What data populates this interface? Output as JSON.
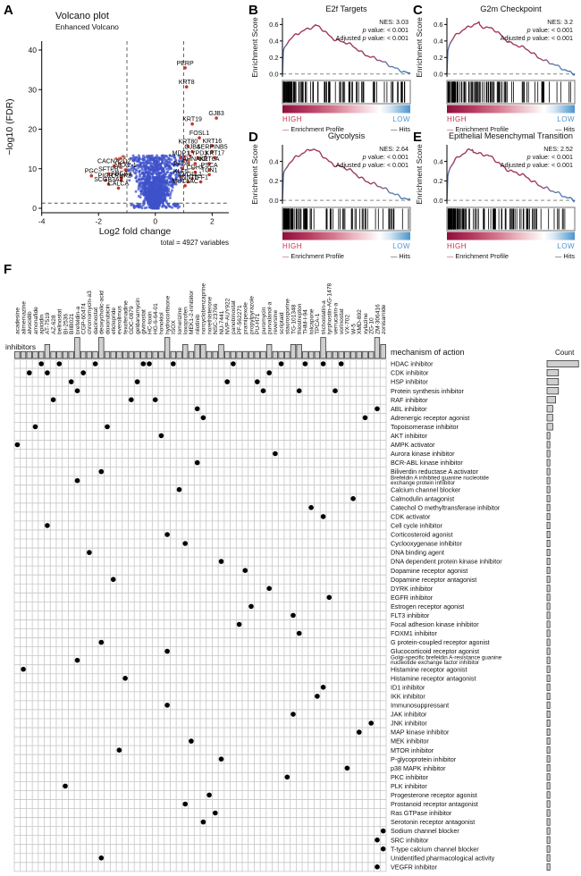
{
  "panel_letters": [
    "A",
    "B",
    "C",
    "D",
    "E",
    "F"
  ],
  "colors": {
    "volcano_base": "#3D52C9",
    "volcano_sig": "#C0392B",
    "gsea_curve": "#A13A57",
    "gsea_blue": "#4E7FBE",
    "high": "#C0304C",
    "low": "#4E94CE",
    "bar_fill": "#CFCFCF",
    "grid": "#C6C6C6"
  },
  "chart_data": [
    {
      "id": "A",
      "type": "scatter",
      "variant": "volcano",
      "title": "Volcano plot",
      "subtitle": "Enhanced Volcano",
      "xlabel": "Log2 fold change",
      "ylabel": "−log10 (FDR)",
      "caption": "total = 4927 variables",
      "xticks": [
        -4,
        -2,
        0,
        2
      ],
      "yticks": [
        0,
        10,
        20,
        30,
        40
      ],
      "xlim": [
        -4.35,
        2.6
      ],
      "ylim": [
        -1,
        42
      ],
      "vlines": [
        -1,
        1
      ],
      "hline": 1.3,
      "seed": 42,
      "cloud_n": 1600,
      "colors": {
        "base": "#3D52C9",
        "sig": "#C0392B"
      },
      "labeled_genes_up": [
        [
          "PERP",
          1.05,
          35.5
        ],
        [
          "KRT8",
          1.1,
          30.7
        ],
        [
          "GJB3",
          2.15,
          22.8
        ],
        [
          "KRT19",
          1.3,
          21.3
        ],
        [
          "FOSL1",
          1.55,
          17.8
        ],
        [
          "KRT80",
          1.15,
          15.7
        ],
        [
          "KRT16",
          2.0,
          15.8
        ],
        [
          "GJB4",
          1.3,
          14.3
        ],
        [
          "SERPINB5",
          2.0,
          14.3
        ],
        [
          "MDP1",
          0.9,
          12.8
        ],
        [
          "LYPD3",
          1.5,
          12.8
        ],
        [
          "KRT17",
          2.1,
          12.8
        ],
        [
          "AHNAK2",
          1.4,
          11.3
        ],
        [
          "KRT6A",
          1.9,
          11.3
        ],
        [
          "PADI1",
          0.95,
          10.1
        ],
        [
          "PSCA",
          1.9,
          9.7
        ],
        [
          "CDH3",
          1.4,
          9.1
        ],
        [
          "TCN1",
          1.9,
          8.5
        ],
        [
          "KLF5",
          0.9,
          8.1
        ],
        [
          "VGLL1",
          1.3,
          7.5
        ],
        [
          "TNNT1",
          1.15,
          6.7
        ],
        [
          "TFF1",
          1.6,
          6.7
        ],
        [
          "MUC5AC",
          1.05,
          5.7
        ]
      ],
      "labeled_genes_down": [
        [
          "CACNA2D2",
          -1.45,
          10.7
        ],
        [
          "NKX2-1",
          -1.05,
          9.7
        ],
        [
          "SFTPB",
          -1.65,
          8.7
        ],
        [
          "PGC",
          -2.25,
          8.2
        ],
        [
          "ABCA3",
          -1.2,
          7.7
        ],
        [
          "PIGR",
          -1.75,
          7.1
        ],
        [
          "LRRK2",
          -1.2,
          7.1
        ],
        [
          "SCGB3A2",
          -1.65,
          6.1
        ],
        [
          "CALCA",
          -1.3,
          5.1
        ]
      ]
    },
    {
      "id": "B",
      "type": "line",
      "variant": "gsea",
      "title": "E2f Targets",
      "ylabel": "Enrichment Score",
      "nes": "NES: 3.03",
      "pval": "p value: < 0.001",
      "padj": "Adjusted p value: < 0.001",
      "yticks": [
        0,
        0.2,
        0.4,
        0.6
      ],
      "ymax": 0.68,
      "peak_es": 0.575,
      "peak_x": 0.25,
      "seed": 7,
      "high_label": "HIGH",
      "low_label": "LOW",
      "legend": [
        "Enrichment Profile",
        "Hits"
      ]
    },
    {
      "id": "C",
      "type": "line",
      "variant": "gsea",
      "title": "G2m Checkpoint",
      "ylabel": "Enrichment Score",
      "nes": "NES: 3.2",
      "pval": "p value: < 0.001",
      "padj": "Adjusted p value: < 0.001",
      "yticks": [
        0,
        0.2,
        0.4,
        0.6
      ],
      "ymax": 0.68,
      "peak_es": 0.62,
      "peak_x": 0.25,
      "seed": 11,
      "high_label": "HIGH",
      "low_label": "LOW",
      "legend": [
        "Enrichment Profile",
        "Hits"
      ]
    },
    {
      "id": "D",
      "type": "line",
      "variant": "gsea",
      "title": "Glycolysis",
      "ylabel": "Enrichment Score",
      "nes": "NES: 2.64",
      "pval": "p value: < 0.001",
      "padj": "Adjusted p value: < 0.001",
      "yticks": [
        0,
        0.2,
        0.4
      ],
      "ymax": 0.57,
      "peak_es": 0.52,
      "peak_x": 0.22,
      "seed": 13,
      "high_label": "HIGH",
      "low_label": "LOW",
      "legend": [
        "Enrichment Profile",
        "Hits"
      ]
    },
    {
      "id": "E",
      "type": "line",
      "variant": "gsea",
      "title": "Epithelial Mesenchymal Transition",
      "ylabel": "Enrichment Score",
      "nes": "NES: 2.52",
      "pval": "p value: < 0.001",
      "padj": "Adjusted p value: < 0.001",
      "yticks": [
        0,
        0.2,
        0.4
      ],
      "ymax": 0.57,
      "peak_es": 0.53,
      "peak_x": 0.2,
      "seed": 17,
      "high_label": "HIGH",
      "low_label": "LOW",
      "legend": [
        "Enrichment Profile",
        "Hits"
      ]
    },
    {
      "id": "F",
      "type": "heatmap",
      "variant": "dot-matrix",
      "inhibitors_label": "inhibitors",
      "row_header": "mechanism of action",
      "count_header": "Count",
      "columns": [
        "acadesine",
        "alimemazine",
        "alvocidib",
        "amonafide",
        "apicidin",
        "AT-7519",
        "AZ-628",
        "belinostat",
        "BI-2536",
        "BIIB021",
        "brefeldin-a",
        "CGP-60474",
        "chromomycin-a3",
        "dacinostat",
        "deoxycholic-acid",
        "doxorubicin",
        "eticlopride",
        "everolimus",
        "fexofenadine",
        "GDC-0879",
        "geldanamycin",
        "givinostat",
        "HC-toxin",
        "HG-6-64-01",
        "honokiol",
        "hydrocortisone",
        "ISOX",
        "lomerizine",
        "loxoprofen",
        "MEK1-2-inhibitor",
        "nilotinib",
        "norcyclobenzaprine",
        "norethisterone",
        "NSC-23766",
        "NU-7441",
        "NVP-AUY922",
        "panobinostat",
        "PF-562271",
        "pramipexole",
        "propylpyrazole",
        "PU-H71",
        "puromycin",
        "purvalanol-a",
        "reversine",
        "scriptaid",
        "staurosporine",
        "TG-101348",
        "thiostrepton",
        "THM-I-94",
        "tolcapone",
        "TPCA-1",
        "trichostatin-a",
        "tyrphostin-AG-1478",
        "verrucarin-a",
        "vorinostat",
        "VX-702",
        "W-5",
        "XMD-892",
        "xylazine",
        "ZG-10",
        "ZM-306416",
        "zonisamide"
      ],
      "rows": [
        "HDAC inhibitor",
        "CDK inhibitor",
        "HSP inhibitor",
        "Protein synthesis inhibitor",
        "RAF inhibitor",
        "ABL inhibitor",
        "Adrenergic receptor agonist",
        "Topoisomerase inhibitor",
        "AKT inhibitor",
        "AMPK activator",
        "Aurora kinase inhibitor",
        "BCR-ABL kinase inhibitor",
        "Biliverdin reductase A activator",
        "Brefeldin A inhibited guanine nucleotide exchange protein inhibitor",
        "Calcium channel blocker",
        "Calmodulin antagonist",
        "Catechol O methyltransferase inhibitor",
        "CDK activator",
        "Cell cycle inhibitor",
        "Corticosteroid agonist",
        "Cyclooxygenase inhibitor",
        "DNA binding agent",
        "DNA dependent protein kinase inhibitor",
        "Dopamine receptor agonist",
        "Dopamine receptor antagonist",
        "DYRK inhibitor",
        "EGFR inhibitor",
        "Estrogen receptor agonist",
        "FLT3 inhibitor",
        "Focal adhesion kinase inhibitor",
        "FOXM1 inhibitor",
        "G protein-coupled receptor agonist",
        "Glucocorticoid receptor agonist",
        "Golgi-specific brefeldin A-resistance guanine nucleotide exchange factor inhibitor",
        "Histamine receptor agonist",
        "Histamine receptor antagonist",
        "ID1 inhibitor",
        "IKK inhibitor",
        "Immunosuppressant",
        "JAK inhibitor",
        "JNK inhibitor",
        "MAP kinase inhibitor",
        "MEK inhibitor",
        "MTOR inhibitor",
        "P-glycoprotein inhibitor",
        "p38 MAPK inhibitor",
        "PKC inhibitor",
        "PLK inhibitor",
        "Progesterone receptor agonist",
        "Prostanoid receptor antagonist",
        "Ras GTPase inhibitor",
        "Serotonin receptor antagonist",
        "Sodium channel blocker",
        "SRC inhibitor",
        "T-type calcium channel blocker",
        "Unidentified pharmacological activity",
        "VEGFR inhibitor"
      ],
      "row_wrap": {
        "14": [
          "Brefeldin A inhibited guanine nucleotide",
          "exchange protein inhibitor"
        ],
        "34": [
          "Golgi-specific brefeldin A-resistance guanine",
          "nucleotide exchange factor inhibitor"
        ]
      },
      "dots": [
        [
          5,
          1
        ],
        [
          8,
          1
        ],
        [
          14,
          1
        ],
        [
          22,
          1
        ],
        [
          23,
          1
        ],
        [
          27,
          1
        ],
        [
          37,
          1
        ],
        [
          45,
          1
        ],
        [
          49,
          1
        ],
        [
          52,
          1
        ],
        [
          55,
          1
        ],
        [
          3,
          2
        ],
        [
          6,
          2
        ],
        [
          12,
          2
        ],
        [
          43,
          2
        ],
        [
          10,
          3
        ],
        [
          21,
          3
        ],
        [
          36,
          3
        ],
        [
          41,
          3
        ],
        [
          11,
          4
        ],
        [
          42,
          4
        ],
        [
          48,
          4
        ],
        [
          54,
          4
        ],
        [
          7,
          5
        ],
        [
          20,
          5
        ],
        [
          24,
          5
        ],
        [
          31,
          6
        ],
        [
          61,
          6
        ],
        [
          32,
          7
        ],
        [
          59,
          7
        ],
        [
          4,
          8
        ],
        [
          16,
          8
        ],
        [
          25,
          9
        ],
        [
          1,
          10
        ],
        [
          44,
          11
        ],
        [
          31,
          12
        ],
        [
          15,
          13
        ],
        [
          11,
          14
        ],
        [
          28,
          15
        ],
        [
          57,
          16
        ],
        [
          50,
          17
        ],
        [
          52,
          18
        ],
        [
          6,
          19
        ],
        [
          26,
          20
        ],
        [
          29,
          21
        ],
        [
          13,
          22
        ],
        [
          35,
          23
        ],
        [
          39,
          24
        ],
        [
          17,
          25
        ],
        [
          43,
          26
        ],
        [
          53,
          27
        ],
        [
          40,
          28
        ],
        [
          47,
          29
        ],
        [
          38,
          30
        ],
        [
          48,
          31
        ],
        [
          15,
          32
        ],
        [
          26,
          33
        ],
        [
          11,
          34
        ],
        [
          2,
          35
        ],
        [
          19,
          36
        ],
        [
          52,
          37
        ],
        [
          51,
          38
        ],
        [
          26,
          39
        ],
        [
          47,
          40
        ],
        [
          60,
          41
        ],
        [
          58,
          42
        ],
        [
          30,
          43
        ],
        [
          18,
          44
        ],
        [
          35,
          45
        ],
        [
          56,
          46
        ],
        [
          46,
          47
        ],
        [
          9,
          48
        ],
        [
          33,
          49
        ],
        [
          29,
          50
        ],
        [
          34,
          51
        ],
        [
          32,
          52
        ],
        [
          62,
          53
        ],
        [
          61,
          54
        ],
        [
          62,
          55
        ],
        [
          15,
          56
        ],
        [
          61,
          57
        ]
      ]
    }
  ]
}
